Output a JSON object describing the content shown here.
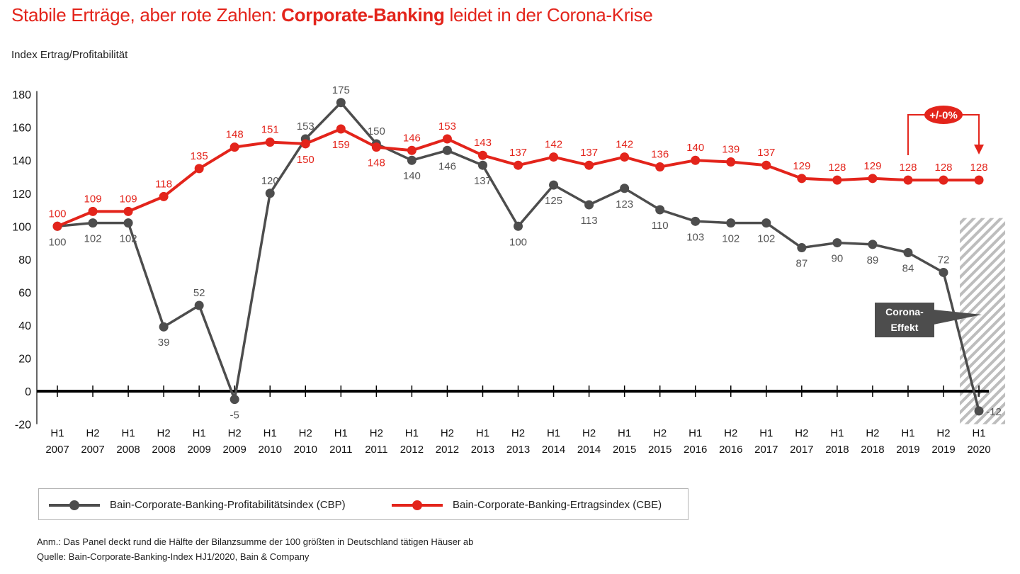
{
  "title": {
    "part1": "Stabile Erträge, aber rote Zahlen: ",
    "bold": "Corporate-Banking",
    "part2": " leidet in der Corona-Krise"
  },
  "subtitle": "Index Ertrag/Profitabilität",
  "colors": {
    "cbe": "#e3241b",
    "cbp": "#4d4d4d",
    "axis": "#000000",
    "hatch": "#bdbdbd"
  },
  "chart_data": {
    "type": "line",
    "title": "Stabile Erträge, aber rote Zahlen: Corporate-Banking leidet in der Corona-Krise",
    "ylabel": "Index Ertrag/Profitabilität",
    "ylim": [
      -20,
      180
    ],
    "yticks": [
      "180",
      "160",
      "140",
      "120",
      "100",
      "80",
      "60",
      "40",
      "20",
      "0",
      "-20"
    ],
    "ytick_values": [
      180,
      160,
      140,
      120,
      100,
      80,
      60,
      40,
      20,
      0,
      -20
    ],
    "categories": [
      [
        "H1",
        "2007"
      ],
      [
        "H2",
        "2007"
      ],
      [
        "H1",
        "2008"
      ],
      [
        "H2",
        "2008"
      ],
      [
        "H1",
        "2009"
      ],
      [
        "H2",
        "2009"
      ],
      [
        "H1",
        "2010"
      ],
      [
        "H2",
        "2010"
      ],
      [
        "H1",
        "2011"
      ],
      [
        "H2",
        "2011"
      ],
      [
        "H1",
        "2012"
      ],
      [
        "H2",
        "2012"
      ],
      [
        "H1",
        "2013"
      ],
      [
        "H2",
        "2013"
      ],
      [
        "H1",
        "2014"
      ],
      [
        "H2",
        "2014"
      ],
      [
        "H1",
        "2015"
      ],
      [
        "H2",
        "2015"
      ],
      [
        "H1",
        "2016"
      ],
      [
        "H2",
        "2016"
      ],
      [
        "H1",
        "2017"
      ],
      [
        "H2",
        "2017"
      ],
      [
        "H1",
        "2018"
      ],
      [
        "H2",
        "2018"
      ],
      [
        "H1",
        "2019"
      ],
      [
        "H2",
        "2019"
      ],
      [
        "H1",
        "2020"
      ]
    ],
    "series": [
      {
        "name": "Bain-Corporate-Banking-Profitabilitätsindex (CBP)",
        "key": "cbp",
        "values": [
          100,
          102,
          102,
          39,
          52,
          -5,
          120,
          153,
          175,
          150,
          140,
          146,
          137,
          100,
          125,
          113,
          123,
          110,
          103,
          102,
          102,
          87,
          90,
          89,
          84,
          72,
          -12
        ]
      },
      {
        "name": "Bain-Corporate-Banking-Ertragsindex (CBE)",
        "key": "cbe",
        "values": [
          100,
          109,
          109,
          118,
          135,
          148,
          151,
          150,
          159,
          148,
          146,
          153,
          143,
          137,
          142,
          137,
          142,
          136,
          140,
          139,
          137,
          129,
          128,
          129,
          128,
          128,
          128
        ]
      }
    ],
    "annotations": {
      "change_badge": "+/-0%",
      "corona_callout": [
        "Corona-",
        "Effekt"
      ],
      "highlight_period": "H1 2020"
    },
    "legend": "bottom",
    "grid": false
  },
  "legend": {
    "cbp": "Bain-Corporate-Banking-Profitabilitätsindex (CBP)",
    "cbe": "Bain-Corporate-Banking-Ertragsindex (CBE)"
  },
  "notes": {
    "anm": "Anm.: Das Panel deckt rund die Hälfte der Bilanzsumme der 100 größten in Deutschland tätigen Häuser ab",
    "quelle": "Quelle: Bain-Corporate-Banking-Index HJ1/2020, Bain & Company"
  }
}
